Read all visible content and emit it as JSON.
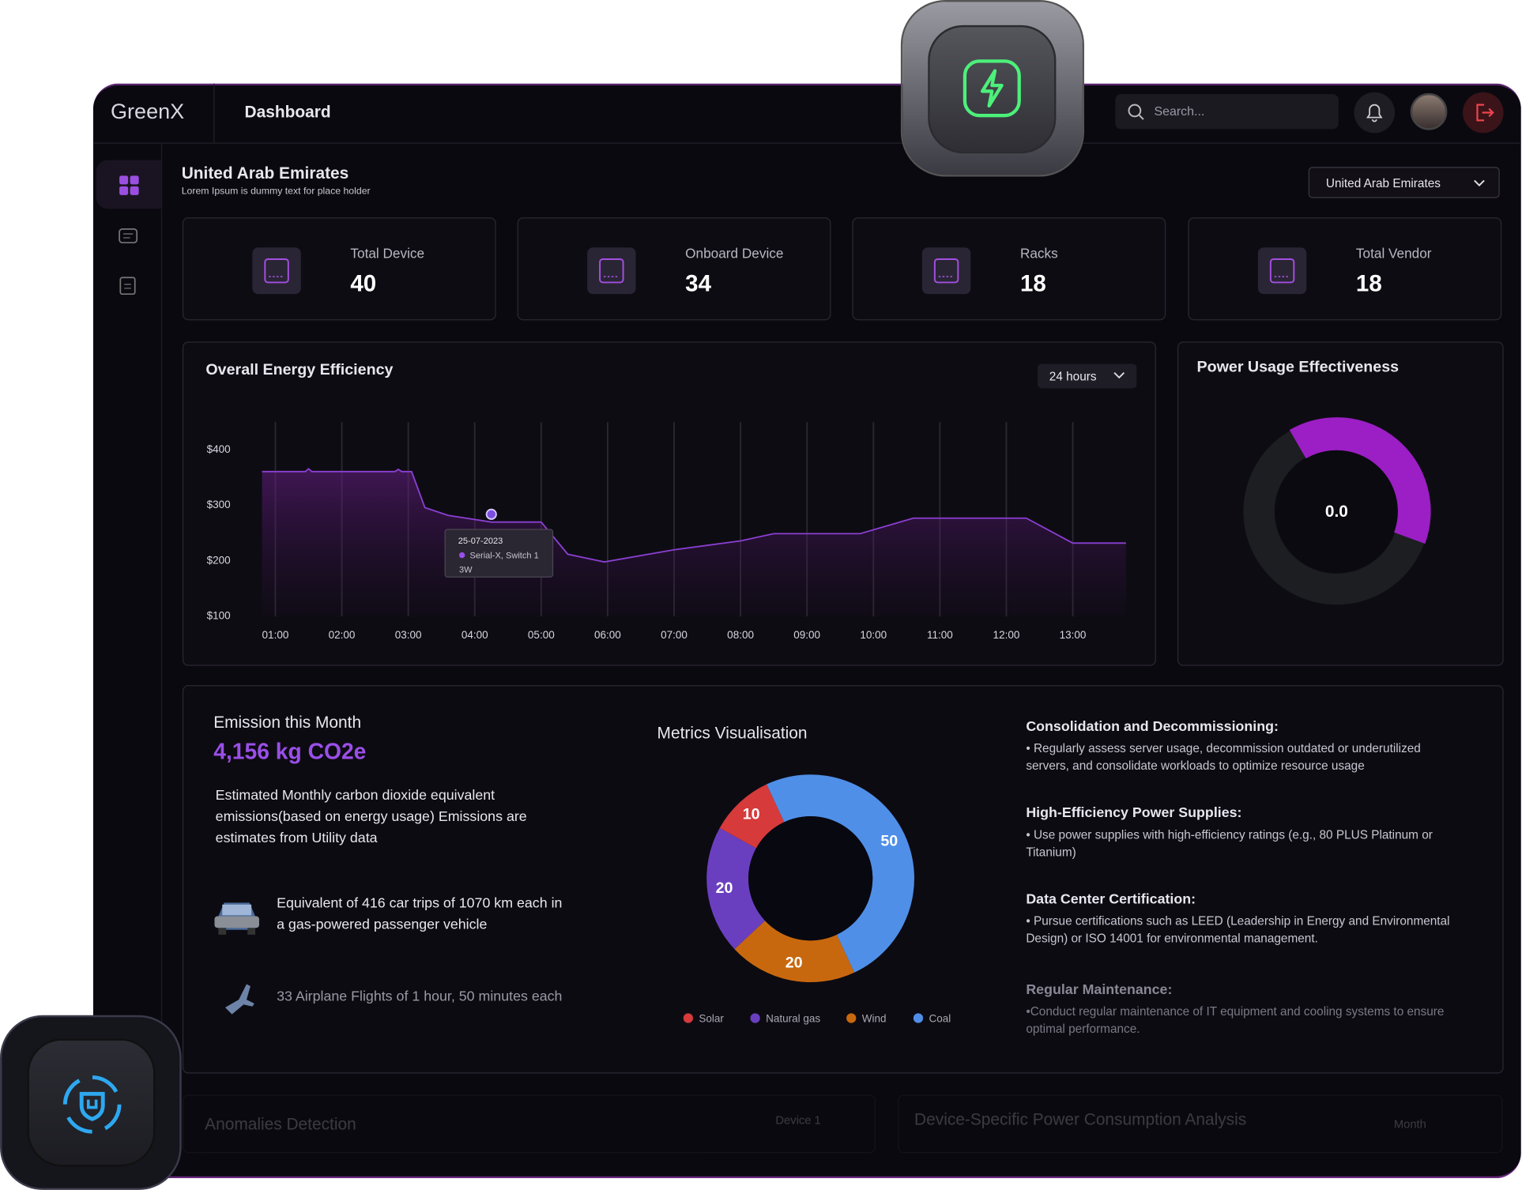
{
  "header": {
    "logo": "GreenX",
    "title": "Dashboard",
    "search": "Search..."
  },
  "location": {
    "title": "United Arab Emirates",
    "subtitle": "Lorem Ipsum is dummy text for place holder",
    "select": "United Arab Emirates"
  },
  "stats": [
    {
      "label": "Total Device",
      "value": 40
    },
    {
      "label": "Onboard Device",
      "value": 34
    },
    {
      "label": "Racks",
      "value": 18
    },
    {
      "label": "Total Vendor",
      "value": 18
    }
  ],
  "chart_data": [
    {
      "type": "line",
      "title": "Overall Energy Efficiency",
      "range_select": "24 hours",
      "x": [
        0.8,
        1.45,
        1.5,
        1.55,
        2.0,
        2.8,
        2.85,
        2.9,
        3.05,
        3.25,
        3.6,
        4.25,
        5.0,
        5.4,
        5.95,
        7.0,
        8.0,
        8.5,
        9.8,
        10.6,
        12.3,
        13.0,
        13.8
      ],
      "series": [
        {
          "color": "#8a3fd1",
          "values": [
            361,
            361,
            366,
            361,
            361,
            361,
            365,
            361,
            361,
            296,
            282,
            270,
            270,
            212,
            198,
            220,
            236,
            249,
            249,
            277,
            277,
            232,
            232
          ]
        }
      ],
      "xlim": [
        0.8,
        13.8
      ],
      "xticks": [
        {
          "value": 1,
          "label": "01:00"
        },
        {
          "value": 2,
          "label": "02:00"
        },
        {
          "value": 3,
          "label": "03:00"
        },
        {
          "value": 4,
          "label": "04:00"
        },
        {
          "value": 5,
          "label": "05:00"
        },
        {
          "value": 6,
          "label": "06:00"
        },
        {
          "value": 7,
          "label": "07:00"
        },
        {
          "value": 8,
          "label": "08:00"
        },
        {
          "value": 9,
          "label": "09:00"
        },
        {
          "value": 10,
          "label": "10:00"
        },
        {
          "value": 11,
          "label": "11:00"
        },
        {
          "value": 12,
          "label": "12:00"
        },
        {
          "value": 13,
          "label": "13:00"
        }
      ],
      "ylim": [
        100,
        450
      ],
      "yticks": [
        {
          "value": 100,
          "label": "$100"
        },
        {
          "value": 200,
          "label": "$200"
        },
        {
          "value": 300,
          "label": "$300"
        },
        {
          "value": 400,
          "label": "$400"
        }
      ],
      "grid": true,
      "tooltip": {
        "date": "25-07-2023",
        "device": "Serial-X, Switch 1",
        "reading": "3W"
      }
    },
    {
      "type": "pie",
      "title": "Metrics Visualisation",
      "categories": [
        "Solar",
        "Natural gas",
        "Wind",
        "Coal"
      ],
      "values": [
        10,
        20,
        20,
        50
      ],
      "colors": [
        "#d63a3a",
        "#6a3fbf",
        "#c8680e",
        "#4f8fe8"
      ]
    }
  ],
  "pue": {
    "title": "Power Usage Effectiveness",
    "value": "0.0"
  },
  "emission": {
    "title": "Emission this Month",
    "amount": "4,156 kg CO2e",
    "description": "Estimated Monthly carbon dioxide equivalent emissions(based on energy usage) Emissions are estimates from Utility data",
    "car": "Equivalent of 416 car trips of 1070 km each in a gas-powered passenger vehicle",
    "flights": "33 Airplane Flights of 1 hour, 50 minutes each"
  },
  "tips": [
    {
      "title": "Consolidation and Decommissioning:",
      "text": "• Regularly assess server usage, decommission outdated or underutilized servers, and consolidate workloads to optimize resource usage"
    },
    {
      "title": "High-Efficiency Power Supplies:",
      "text": "• Use power supplies with high-efficiency ratings (e.g., 80 PLUS Platinum or Titanium)"
    },
    {
      "title": "Data Center Certification:",
      "text": "• Pursue certifications such as LEED (Leadership in Energy and Environmental Design) or ISO 14001 for environmental management."
    },
    {
      "title": "Regular Maintenance:",
      "text": "•Conduct regular maintenance of IT equipment and cooling systems to ensure optimal performance."
    }
  ],
  "faded": {
    "anomalies_title": "Anomalies Detection",
    "anomalies_select": "Device 1",
    "power_title": "Device-Specific Power Consumption Analysis",
    "power_select": "Month"
  }
}
